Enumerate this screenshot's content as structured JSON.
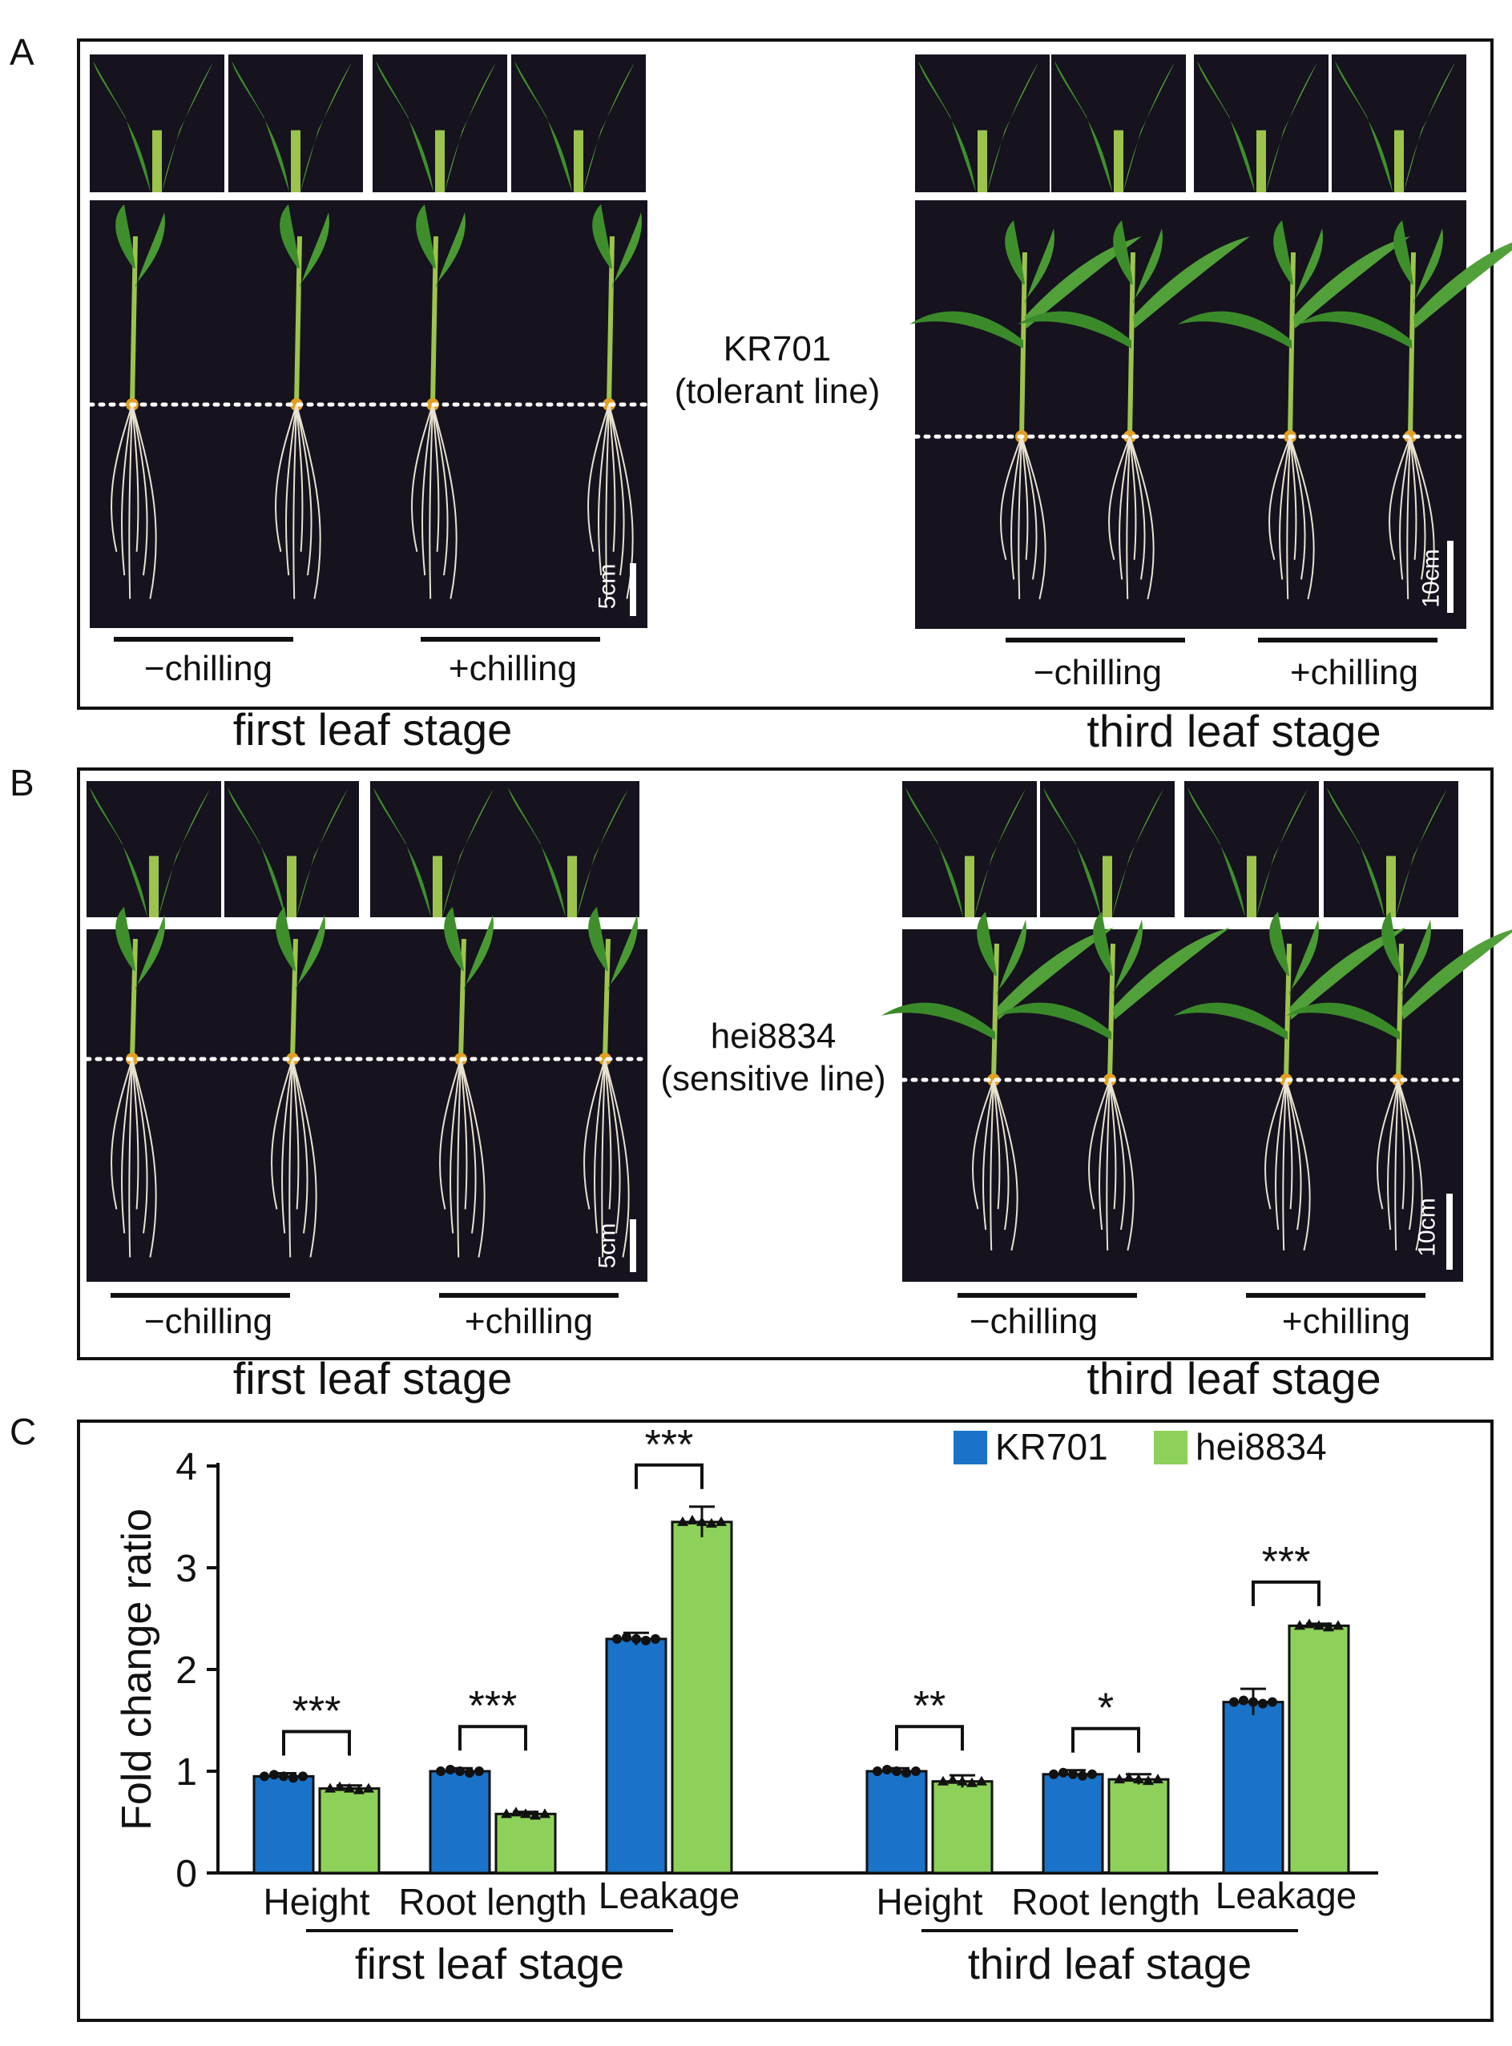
{
  "panels": {
    "A": {
      "letter": "A",
      "line_name": "KR701",
      "line_desc": "(tolerant line)",
      "left_stage": "first leaf stage",
      "right_stage": "third leaf stage",
      "minus": "−chilling",
      "plus": "+chilling",
      "scale_left": "5cm",
      "scale_right": "10cm"
    },
    "B": {
      "letter": "B",
      "line_name": "hei8834",
      "line_desc": "(sensitive line)",
      "left_stage": "first leaf stage",
      "right_stage": "third leaf stage",
      "minus": "−chilling",
      "plus": "+chilling",
      "scale_left": "5cm",
      "scale_right": "10cm"
    },
    "C": {
      "letter": "C"
    }
  },
  "colors": {
    "kr701": "#1a73c8",
    "hei8834": "#8ed15a",
    "photo_bg": "#16121e",
    "leaf": "#3e8f2c",
    "root": "#e8e2d0"
  },
  "chart_data": {
    "type": "bar",
    "ylabel": "Fold change ratio",
    "ylim": [
      0,
      4
    ],
    "yticks": [
      "0",
      "1",
      "2",
      "3",
      "4"
    ],
    "categories": [
      "Height",
      "Root length",
      "Leakage",
      "Height",
      "Root length",
      "Leakage"
    ],
    "groups": [
      "first leaf stage",
      "third leaf stage"
    ],
    "series": [
      {
        "name": "KR701",
        "values": [
          0.95,
          1.0,
          2.3,
          1.0,
          0.97,
          1.68
        ],
        "errors": [
          0.03,
          0.03,
          0.06,
          0.03,
          0.04,
          0.13
        ]
      },
      {
        "name": "hei8834",
        "values": [
          0.83,
          0.58,
          3.45,
          0.9,
          0.92,
          2.43
        ],
        "errors": [
          0.03,
          0.02,
          0.15,
          0.06,
          0.05,
          0.02
        ]
      }
    ],
    "significance": [
      "***",
      "***",
      "***",
      "**",
      "*",
      "***"
    ],
    "legend_position": "top-right"
  }
}
